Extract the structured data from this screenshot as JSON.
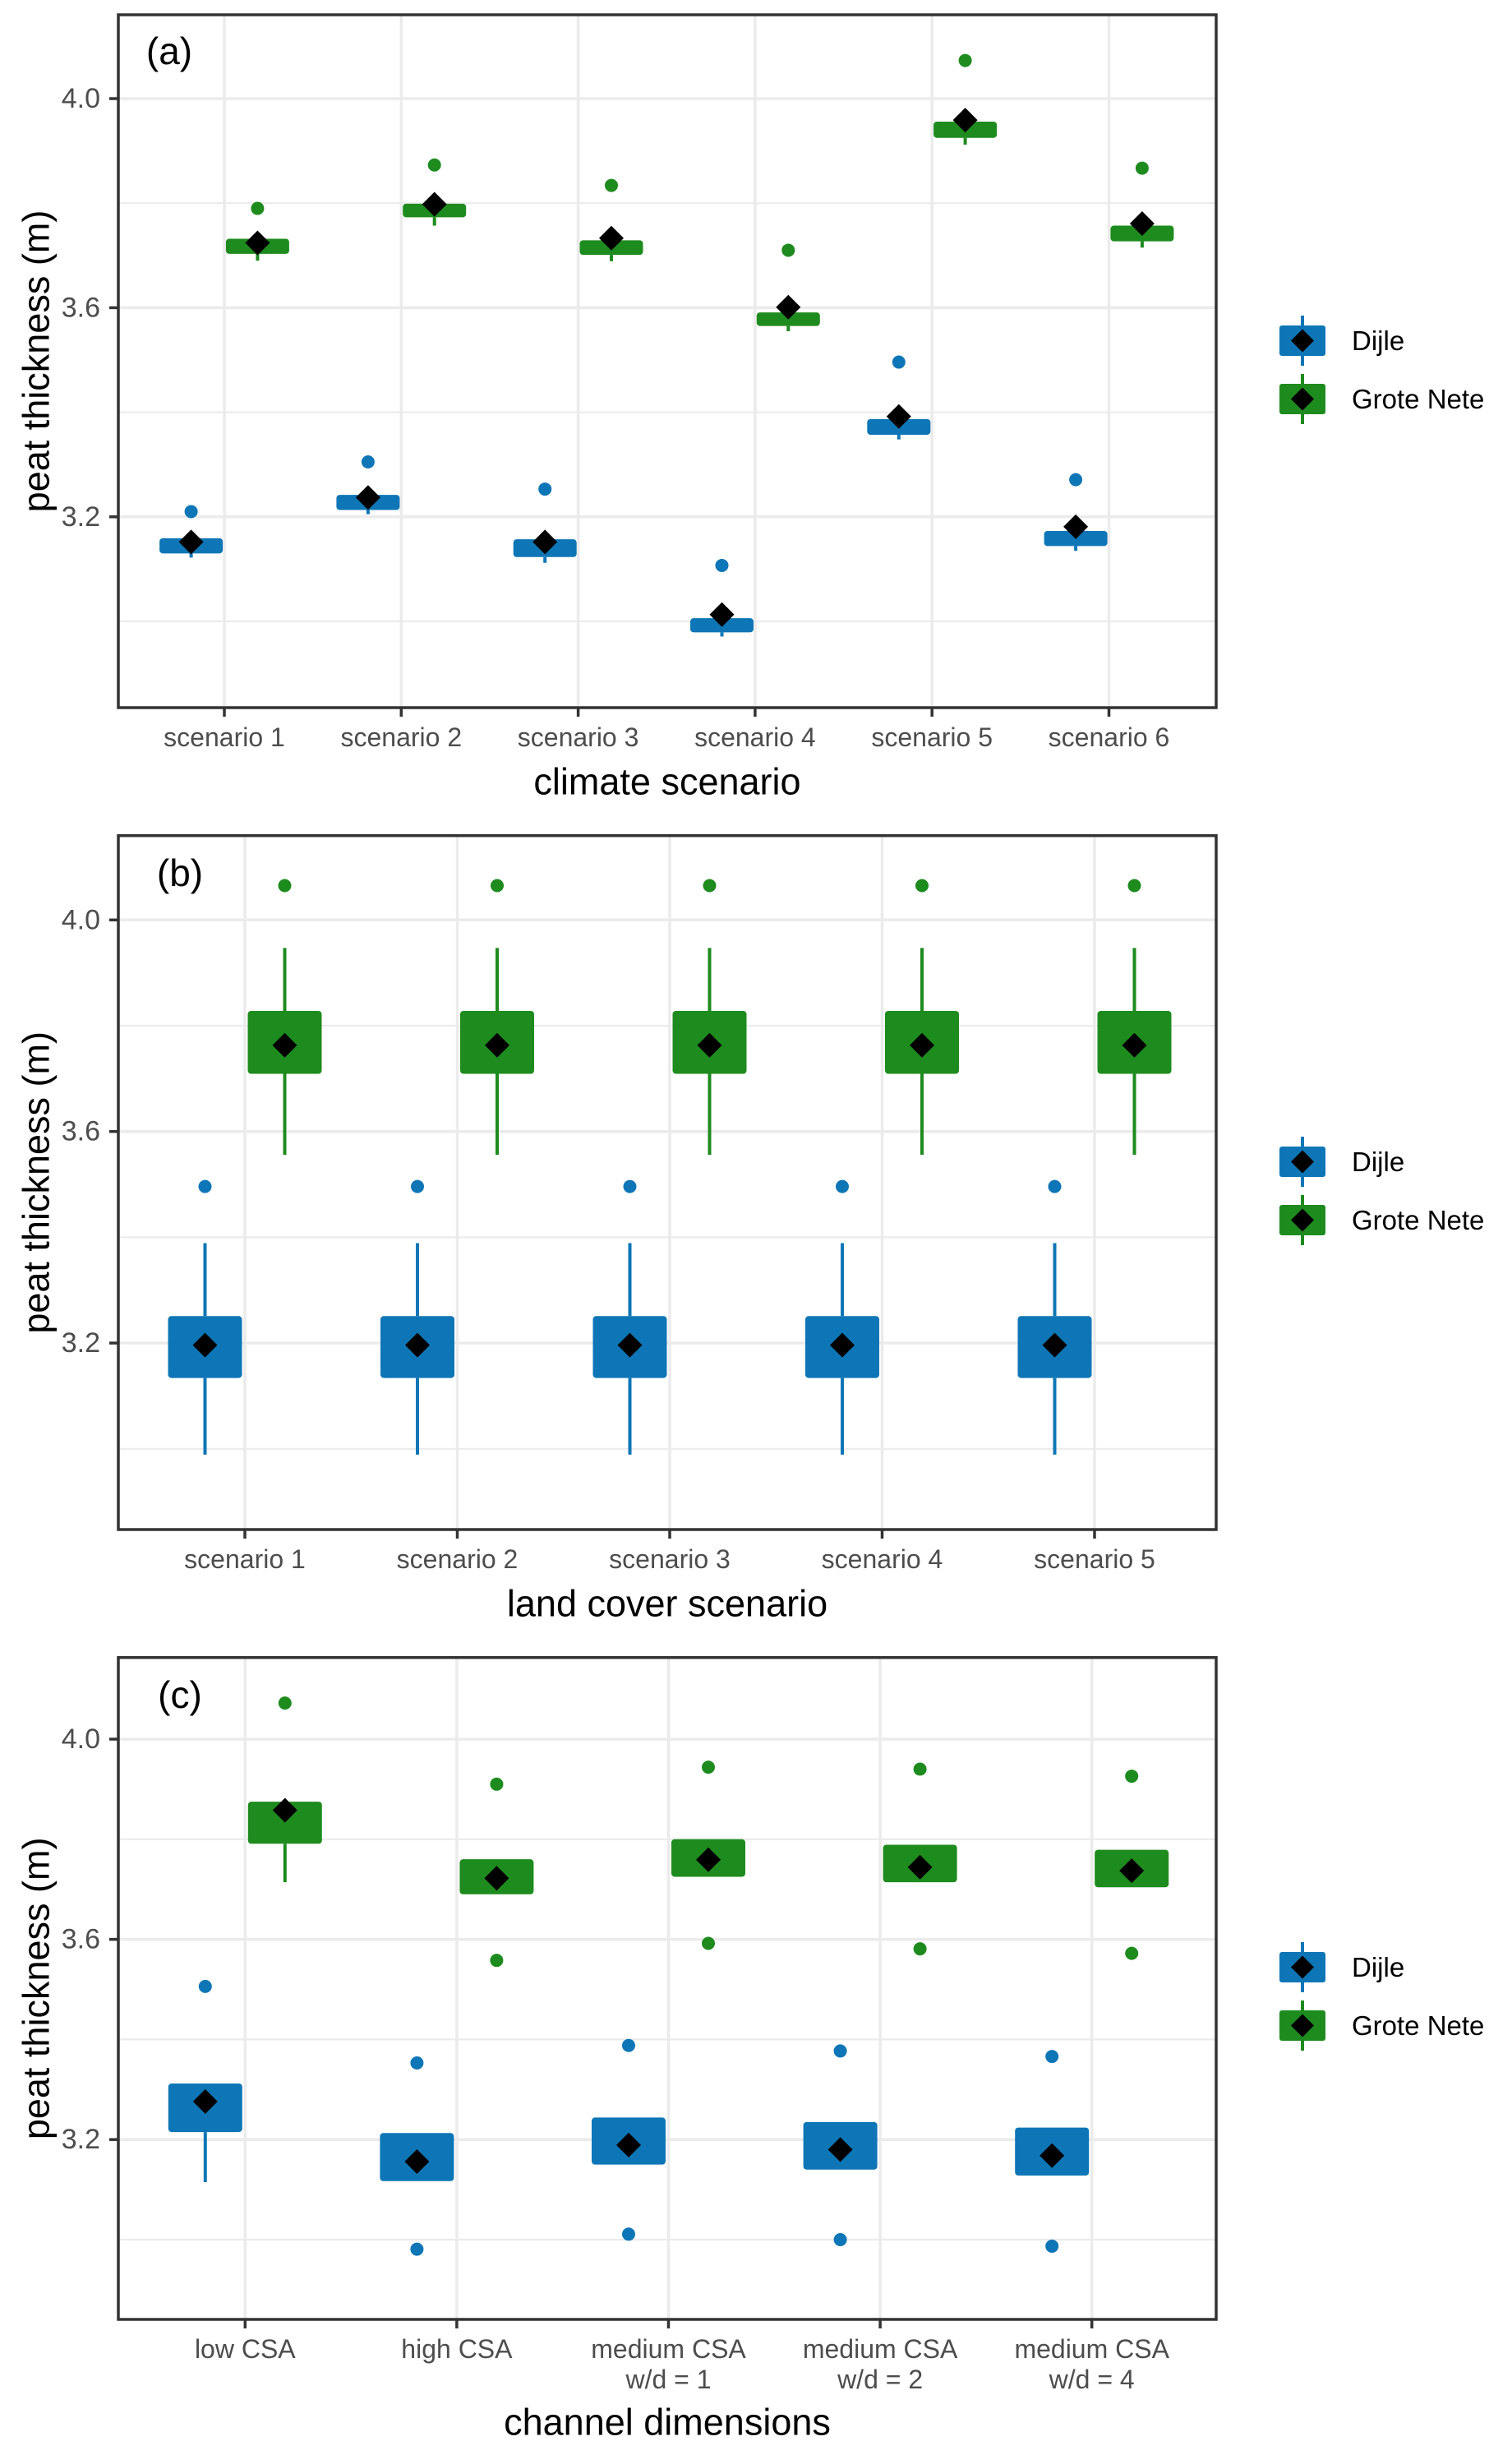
{
  "figure_type": "three stacked boxplot panels",
  "ylabel": "peat thickness (m)",
  "legend": {
    "items": [
      {
        "label": "Dijle",
        "color": "#0e76b6"
      },
      {
        "label": "Grote Nete",
        "color": "#1e8b1e"
      }
    ]
  },
  "colors": {
    "dijle_blue": "#0e76b6",
    "grote_nete_green": "#1e8b1e",
    "mean_marker": "#000000",
    "grid": "#ebebeb",
    "panel_border": "#333333",
    "tick_label": "#4d4d4d",
    "axis_title": "#000000"
  },
  "chart_data": [
    {
      "type": "boxplot",
      "panel_label": "(a)",
      "xlabel": "climate scenario",
      "ylabel": "peat thickness (m)",
      "yticks": [
        3.2,
        3.6,
        4.0
      ],
      "yticks_minor": [
        3.0,
        3.4,
        3.8
      ],
      "ylim": [
        2.84,
        4.16
      ],
      "legend_position": "right",
      "categories": [
        "scenario 1",
        "scenario 2",
        "scenario 3",
        "scenario 4",
        "scenario 5",
        "scenario 6"
      ],
      "series": [
        {
          "name": "Dijle",
          "color": "#0e76b6",
          "boxes": [
            {
              "whislo": 3.122,
              "q1": 3.13,
              "q3": 3.159,
              "whishi": 3.159,
              "mean": 3.152,
              "outliers": [
                3.21
              ]
            },
            {
              "whislo": 3.205,
              "q1": 3.213,
              "q3": 3.242,
              "whishi": 3.242,
              "mean": 3.237,
              "outliers": [
                3.305
              ]
            },
            {
              "whislo": 3.112,
              "q1": 3.123,
              "q3": 3.157,
              "whishi": 3.157,
              "mean": 3.152,
              "outliers": [
                3.253
              ]
            },
            {
              "whislo": 2.971,
              "q1": 2.979,
              "q3": 3.006,
              "whishi": 3.006,
              "mean": 3.013,
              "outliers": [
                3.107
              ]
            },
            {
              "whislo": 3.348,
              "q1": 3.357,
              "q3": 3.387,
              "whishi": 3.387,
              "mean": 3.392,
              "outliers": [
                3.496
              ]
            },
            {
              "whislo": 3.135,
              "q1": 3.144,
              "q3": 3.173,
              "whishi": 3.173,
              "mean": 3.181,
              "outliers": [
                3.271
              ]
            }
          ]
        },
        {
          "name": "Grote Nete",
          "color": "#1e8b1e",
          "boxes": [
            {
              "whislo": 3.69,
              "q1": 3.703,
              "q3": 3.732,
              "whishi": 3.732,
              "mean": 3.724,
              "outliers": [
                3.79
              ]
            },
            {
              "whislo": 3.757,
              "q1": 3.773,
              "q3": 3.799,
              "whishi": 3.799,
              "mean": 3.798,
              "outliers": [
                3.873
              ]
            },
            {
              "whislo": 3.689,
              "q1": 3.701,
              "q3": 3.729,
              "whishi": 3.729,
              "mean": 3.733,
              "outliers": [
                3.834
              ]
            },
            {
              "whislo": 3.555,
              "q1": 3.565,
              "q3": 3.591,
              "whishi": 3.591,
              "mean": 3.601,
              "outliers": [
                3.71
              ]
            },
            {
              "whislo": 3.912,
              "q1": 3.925,
              "q3": 3.956,
              "whishi": 3.956,
              "mean": 3.959,
              "outliers": [
                4.073
              ]
            },
            {
              "whislo": 3.715,
              "q1": 3.727,
              "q3": 3.757,
              "whishi": 3.757,
              "mean": 3.761,
              "outliers": [
                3.867
              ]
            }
          ]
        }
      ]
    },
    {
      "type": "boxplot",
      "panel_label": "(b)",
      "xlabel": "land cover scenario",
      "ylabel": "peat thickness (m)",
      "yticks": [
        3.2,
        3.6,
        4.0
      ],
      "yticks_minor": [
        3.0,
        3.4,
        3.8
      ],
      "ylim": [
        2.84,
        4.16
      ],
      "legend_position": "right",
      "categories": [
        "scenario 1",
        "scenario 2",
        "scenario 3",
        "scenario 4",
        "scenario 5"
      ],
      "series": [
        {
          "name": "Dijle",
          "color": "#0e76b6",
          "boxes": [
            {
              "whislo": 2.989,
              "q1": 3.134,
              "q3": 3.251,
              "whishi": 3.389,
              "mean": 3.196,
              "outliers": [
                3.496
              ]
            },
            {
              "whislo": 2.989,
              "q1": 3.134,
              "q3": 3.251,
              "whishi": 3.389,
              "mean": 3.196,
              "outliers": [
                3.496
              ]
            },
            {
              "whislo": 2.989,
              "q1": 3.134,
              "q3": 3.251,
              "whishi": 3.389,
              "mean": 3.196,
              "outliers": [
                3.496
              ]
            },
            {
              "whislo": 2.989,
              "q1": 3.134,
              "q3": 3.251,
              "whishi": 3.389,
              "mean": 3.196,
              "outliers": [
                3.496
              ]
            },
            {
              "whislo": 2.989,
              "q1": 3.134,
              "q3": 3.251,
              "whishi": 3.389,
              "mean": 3.196,
              "outliers": [
                3.496
              ]
            }
          ]
        },
        {
          "name": "Grote Nete",
          "color": "#1e8b1e",
          "boxes": [
            {
              "whislo": 3.556,
              "q1": 3.709,
              "q3": 3.828,
              "whishi": 3.947,
              "mean": 3.763,
              "outliers": [
                4.065
              ]
            },
            {
              "whislo": 3.556,
              "q1": 3.709,
              "q3": 3.828,
              "whishi": 3.947,
              "mean": 3.763,
              "outliers": [
                4.065
              ]
            },
            {
              "whislo": 3.556,
              "q1": 3.709,
              "q3": 3.828,
              "whishi": 3.947,
              "mean": 3.763,
              "outliers": [
                4.065
              ]
            },
            {
              "whislo": 3.556,
              "q1": 3.709,
              "q3": 3.828,
              "whishi": 3.947,
              "mean": 3.763,
              "outliers": [
                4.065
              ]
            },
            {
              "whislo": 3.556,
              "q1": 3.709,
              "q3": 3.828,
              "whishi": 3.947,
              "mean": 3.763,
              "outliers": [
                4.065
              ]
            }
          ]
        }
      ]
    },
    {
      "type": "boxplot",
      "panel_label": "(c)",
      "xlabel": "channel dimensions",
      "ylabel": "peat thickness (m)",
      "yticks": [
        3.2,
        3.6,
        4.0
      ],
      "yticks_minor": [
        3.0,
        3.4,
        3.8
      ],
      "ylim": [
        2.84,
        4.16
      ],
      "legend_position": "right",
      "categories": [
        "low CSA",
        "high CSA",
        "medium CSA\nw/d = 1",
        "medium CSA\nw/d = 2",
        "medium CSA\nw/d = 4"
      ],
      "series": [
        {
          "name": "Dijle",
          "color": "#0e76b6",
          "boxes": [
            {
              "whislo": 3.115,
              "q1": 3.215,
              "q3": 3.312,
              "whishi": 3.312,
              "mean": 3.276,
              "outliers": [
                3.506
              ]
            },
            {
              "whislo": 3.117,
              "q1": 3.117,
              "q3": 3.213,
              "whishi": 3.213,
              "mean": 3.156,
              "outliers": [
                3.353,
                2.981
              ]
            },
            {
              "whislo": 3.15,
              "q1": 3.15,
              "q3": 3.244,
              "whishi": 3.244,
              "mean": 3.189,
              "outliers": [
                3.388,
                3.011
              ]
            },
            {
              "whislo": 3.14,
              "q1": 3.14,
              "q3": 3.235,
              "whishi": 3.235,
              "mean": 3.18,
              "outliers": [
                3.377,
                3.0
              ]
            },
            {
              "whislo": 3.128,
              "q1": 3.128,
              "q3": 3.224,
              "whishi": 3.224,
              "mean": 3.168,
              "outliers": [
                3.366,
                2.987
              ]
            }
          ]
        },
        {
          "name": "Grote Nete",
          "color": "#1e8b1e",
          "boxes": [
            {
              "whislo": 3.714,
              "q1": 3.791,
              "q3": 3.875,
              "whishi": 3.875,
              "mean": 3.858,
              "outliers": [
                4.072
              ]
            },
            {
              "whislo": 3.69,
              "q1": 3.69,
              "q3": 3.76,
              "whishi": 3.76,
              "mean": 3.722,
              "outliers": [
                3.91,
                3.558
              ]
            },
            {
              "whislo": 3.725,
              "q1": 3.725,
              "q3": 3.8,
              "whishi": 3.8,
              "mean": 3.759,
              "outliers": [
                3.944,
                3.592
              ]
            },
            {
              "whislo": 3.714,
              "q1": 3.714,
              "q3": 3.789,
              "whishi": 3.789,
              "mean": 3.744,
              "outliers": [
                3.94,
                3.581
              ]
            },
            {
              "whislo": 3.704,
              "q1": 3.704,
              "q3": 3.779,
              "whishi": 3.779,
              "mean": 3.737,
              "outliers": [
                3.926,
                3.572
              ]
            }
          ]
        }
      ]
    }
  ]
}
